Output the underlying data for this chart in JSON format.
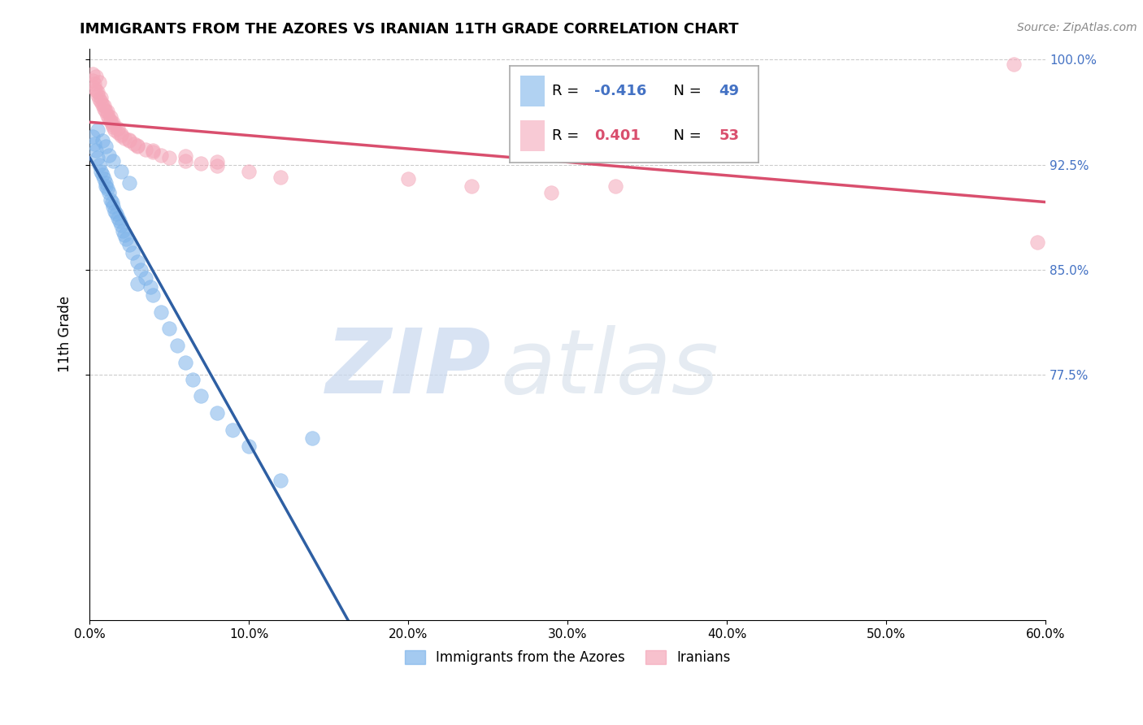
{
  "title": "IMMIGRANTS FROM THE AZORES VS IRANIAN 11TH GRADE CORRELATION CHART",
  "source": "Source: ZipAtlas.com",
  "ylabel": "11th Grade",
  "xlim": [
    0.0,
    0.6
  ],
  "ylim": [
    0.6,
    1.008
  ],
  "blue_color": "#7eb4ea",
  "pink_color": "#f4a7b9",
  "blue_line_color": "#2e5fa3",
  "pink_line_color": "#d94f6e",
  "right_tick_color": "#4472c4",
  "legend_R_blue": "-0.416",
  "legend_N_blue": "49",
  "legend_R_pink": "0.401",
  "legend_N_pink": "53",
  "legend_label_blue": "Immigrants from the Azores",
  "legend_label_pink": "Iranians",
  "blue_scatter_x": [
    0.002,
    0.003,
    0.004,
    0.005,
    0.006,
    0.007,
    0.008,
    0.009,
    0.01,
    0.01,
    0.011,
    0.012,
    0.013,
    0.014,
    0.015,
    0.016,
    0.017,
    0.018,
    0.019,
    0.02,
    0.021,
    0.022,
    0.023,
    0.025,
    0.027,
    0.03,
    0.032,
    0.035,
    0.038,
    0.04,
    0.045,
    0.05,
    0.055,
    0.06,
    0.065,
    0.07,
    0.08,
    0.09,
    0.1,
    0.12,
    0.005,
    0.008,
    0.01,
    0.012,
    0.015,
    0.02,
    0.025,
    0.03,
    0.14
  ],
  "blue_scatter_y": [
    0.945,
    0.94,
    0.935,
    0.93,
    0.925,
    0.92,
    0.918,
    0.915,
    0.912,
    0.91,
    0.908,
    0.905,
    0.9,
    0.898,
    0.895,
    0.892,
    0.89,
    0.887,
    0.885,
    0.882,
    0.878,
    0.875,
    0.872,
    0.868,
    0.862,
    0.856,
    0.85,
    0.844,
    0.838,
    0.832,
    0.82,
    0.808,
    0.796,
    0.784,
    0.772,
    0.76,
    0.748,
    0.736,
    0.724,
    0.7,
    0.95,
    0.942,
    0.938,
    0.932,
    0.928,
    0.92,
    0.912,
    0.84,
    0.73
  ],
  "pink_scatter_x": [
    0.002,
    0.003,
    0.004,
    0.005,
    0.006,
    0.007,
    0.008,
    0.009,
    0.01,
    0.011,
    0.012,
    0.013,
    0.014,
    0.015,
    0.016,
    0.018,
    0.02,
    0.022,
    0.025,
    0.028,
    0.03,
    0.035,
    0.04,
    0.045,
    0.05,
    0.06,
    0.07,
    0.08,
    0.1,
    0.12,
    0.003,
    0.005,
    0.007,
    0.009,
    0.011,
    0.013,
    0.015,
    0.018,
    0.02,
    0.025,
    0.03,
    0.04,
    0.06,
    0.08,
    0.2,
    0.24,
    0.29,
    0.33,
    0.58,
    0.595,
    0.002,
    0.004,
    0.006
  ],
  "pink_scatter_y": [
    0.985,
    0.98,
    0.978,
    0.975,
    0.972,
    0.97,
    0.968,
    0.965,
    0.963,
    0.96,
    0.958,
    0.956,
    0.954,
    0.952,
    0.95,
    0.948,
    0.946,
    0.944,
    0.942,
    0.94,
    0.938,
    0.936,
    0.934,
    0.932,
    0.93,
    0.928,
    0.926,
    0.924,
    0.92,
    0.916,
    0.983,
    0.977,
    0.973,
    0.967,
    0.963,
    0.959,
    0.955,
    0.951,
    0.947,
    0.943,
    0.939,
    0.935,
    0.931,
    0.927,
    0.915,
    0.91,
    0.905,
    0.91,
    0.997,
    0.87,
    0.99,
    0.988,
    0.984
  ]
}
